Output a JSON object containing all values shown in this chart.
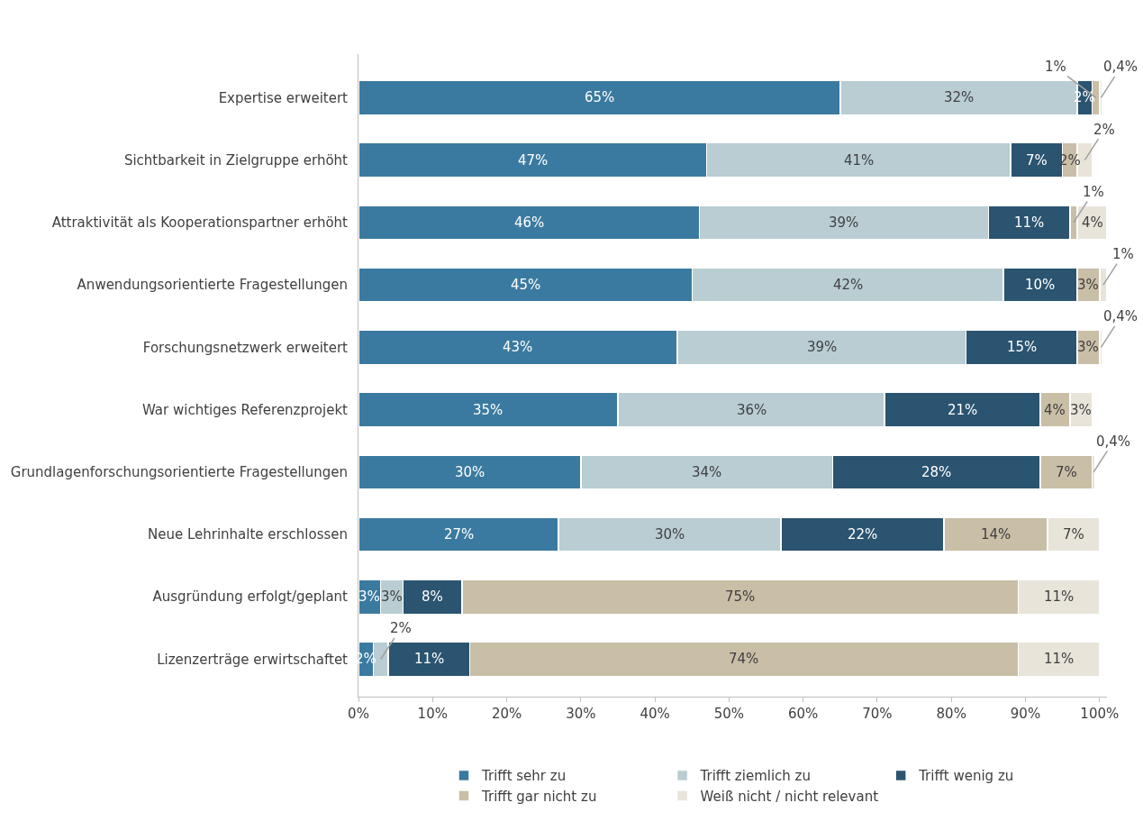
{
  "chart_data": {
    "type": "bar",
    "orientation": "horizontal",
    "stacked": true,
    "categories": [
      "Expertise erweitert",
      "Sichtbarkeit in Zielgruppe erhöht",
      "Attraktivität als Kooperationspartner erhöht",
      "Anwendungsorientierte Fragestellungen",
      "Forschungsnetzwerk erweitert",
      "War wichtiges Referenzprojekt",
      "Grundlagenforschungsorientierte Fragestellungen",
      "Neue Lehrinhalte erschlossen",
      "Ausgründung erfolgt/geplant",
      "Lizenzerträge erwirtschaftet"
    ],
    "series": [
      {
        "name": "Trifft sehr zu",
        "color": "#3b7aa0",
        "values": [
          65,
          47,
          46,
          45,
          43,
          35,
          30,
          27,
          3,
          2
        ],
        "value_labels": [
          "65%",
          "47%",
          "46%",
          "45%",
          "43%",
          "35%",
          "30%",
          "27%",
          "3%",
          "2%"
        ]
      },
      {
        "name": "Trifft ziemlich zu",
        "color": "#b9cdd3",
        "values": [
          32,
          41,
          39,
          42,
          39,
          36,
          34,
          30,
          3,
          2
        ],
        "value_labels": [
          "32%",
          "41%",
          "39%",
          "42%",
          "39%",
          "36%",
          "34%",
          "30%",
          "3%",
          "2%"
        ]
      },
      {
        "name": "Trifft wenig zu",
        "color": "#2a5470",
        "values": [
          2,
          7,
          11,
          10,
          15,
          21,
          28,
          22,
          8,
          11
        ],
        "value_labels": [
          "2%",
          "7%",
          "11%",
          "10%",
          "15%",
          "21%",
          "28%",
          "22%",
          "8%",
          "11%"
        ]
      },
      {
        "name": "Trifft gar nicht zu",
        "color": "#c9bea6",
        "values": [
          1,
          2,
          1,
          3,
          3,
          4,
          7,
          14,
          75,
          74
        ],
        "value_labels": [
          "1%",
          "2%",
          "1%",
          "3%",
          "3%",
          "4%",
          "7%",
          "14%",
          "75%",
          "74%"
        ]
      },
      {
        "name": "Weiß nicht / nicht relevant",
        "color": "#e8e4da",
        "values": [
          0.4,
          2,
          4,
          1,
          0.4,
          3,
          0.4,
          7,
          11,
          11
        ],
        "value_labels": [
          "0,4%",
          "2%",
          "4%",
          "1%",
          "0,4%",
          "3%",
          "0,4%",
          "7%",
          "11%",
          "11%"
        ]
      }
    ],
    "xlim": [
      0,
      101
    ],
    "xticks": [
      {
        "value": 0,
        "label": "0%"
      },
      {
        "value": 10,
        "label": "10%"
      },
      {
        "value": 20,
        "label": "20%"
      },
      {
        "value": 30,
        "label": "30%"
      },
      {
        "value": 40,
        "label": "40%"
      },
      {
        "value": 50,
        "label": "50%"
      },
      {
        "value": 60,
        "label": "60%"
      },
      {
        "value": 70,
        "label": "70%"
      },
      {
        "value": 80,
        "label": "80%"
      },
      {
        "value": 90,
        "label": "90%"
      },
      {
        "value": 100,
        "label": "100%"
      }
    ],
    "legend": "bottom"
  }
}
